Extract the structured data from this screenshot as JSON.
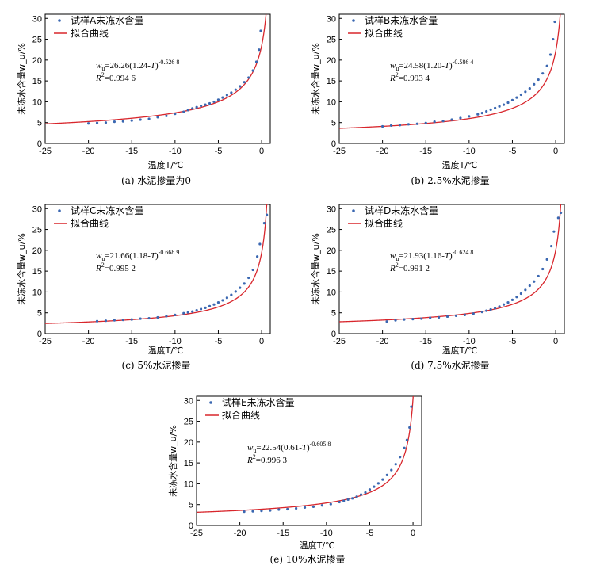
{
  "colors": {
    "scatter": "#3a67b1",
    "fit": "#d8262c",
    "axis": "#000000"
  },
  "chart_data": [
    {
      "type": "scatter",
      "caption": "(a) 水泥掺量为0",
      "xlabel": "温度T/℃",
      "ylabel": "未冻水含量w_u/%",
      "xlim": [
        -25,
        1
      ],
      "ylim": [
        0,
        31
      ],
      "xticks": [
        -25,
        -20,
        -15,
        -10,
        -5,
        0
      ],
      "yticks": [
        0,
        5,
        10,
        15,
        20,
        25,
        30
      ],
      "legend_position": "top-left",
      "series": [
        {
          "name": "试样A未冻水含量",
          "kind": "scatter",
          "x": [
            -20,
            -19,
            -18,
            -17,
            -16,
            -15,
            -14,
            -13,
            -12,
            -11,
            -10,
            -9,
            -8.5,
            -8,
            -7.5,
            -7,
            -6.5,
            -6,
            -5.5,
            -5,
            -4.5,
            -4,
            -3.5,
            -3,
            -2.5,
            -2,
            -1.5,
            -1,
            -0.6,
            -0.3,
            -0.1
          ],
          "y": [
            4.8,
            4.9,
            5.0,
            5.2,
            5.3,
            5.5,
            5.7,
            5.9,
            6.3,
            6.6,
            7.1,
            7.6,
            8.0,
            8.4,
            8.7,
            9.0,
            9.3,
            9.6,
            10.0,
            10.5,
            11.0,
            11.6,
            12.2,
            12.9,
            13.7,
            14.7,
            15.8,
            17.5,
            19.6,
            22.5,
            27.0
          ]
        },
        {
          "name": "拟合曲线",
          "kind": "fit",
          "a": 26.26,
          "b": 1.24,
          "c": -0.5268
        }
      ],
      "annotation": {
        "eq_main": "=26.26(1.24-",
        "eq_end": ")",
        "eq_exp": "-0.526 8",
        "r2_val": "=0.994 6"
      }
    },
    {
      "type": "scatter",
      "caption": "(b) 2.5%水泥掺量",
      "xlabel": "温度T/℃",
      "ylabel": "未冻水含量w_u/%",
      "xlim": [
        -25,
        1
      ],
      "ylim": [
        0,
        31
      ],
      "xticks": [
        -25,
        -20,
        -15,
        -10,
        -5,
        0
      ],
      "yticks": [
        0,
        5,
        10,
        15,
        20,
        25,
        30
      ],
      "legend_position": "top-left",
      "series": [
        {
          "name": "试样B未冻水含量",
          "kind": "scatter",
          "x": [
            -20,
            -19,
            -18,
            -17,
            -16,
            -15,
            -14,
            -13,
            -12,
            -11,
            -10,
            -9,
            -8.5,
            -8,
            -7.5,
            -7,
            -6.5,
            -6,
            -5.5,
            -5,
            -4.5,
            -4,
            -3.5,
            -3,
            -2.5,
            -2,
            -1.5,
            -1,
            -0.6,
            -0.3,
            -0.1
          ],
          "y": [
            4.1,
            4.3,
            4.4,
            4.6,
            4.7,
            4.9,
            5.2,
            5.4,
            5.7,
            6.1,
            6.5,
            7.0,
            7.3,
            7.7,
            8.1,
            8.5,
            8.9,
            9.3,
            9.8,
            10.4,
            11.0,
            11.7,
            12.4,
            13.2,
            14.2,
            15.3,
            16.8,
            18.6,
            21.3,
            25.0,
            29.2
          ]
        },
        {
          "name": "拟合曲线",
          "kind": "fit",
          "a": 24.58,
          "b": 1.2,
          "c": -0.5864
        }
      ],
      "annotation": {
        "eq_main": "=24.58(1.20-",
        "eq_end": ")",
        "eq_exp": "-0.586 4",
        "r2_val": "=0.993 4"
      }
    },
    {
      "type": "scatter",
      "caption": "(c) 5%水泥掺量",
      "xlabel": "温度T/℃",
      "ylabel": "未冻水含量w_u/%",
      "xlim": [
        -25,
        1
      ],
      "ylim": [
        0,
        31
      ],
      "xticks": [
        -25,
        -20,
        -15,
        -10,
        -5,
        0
      ],
      "yticks": [
        0,
        5,
        10,
        15,
        20,
        25,
        30
      ],
      "legend_position": "top-left",
      "series": [
        {
          "name": "试样C未冻水含量",
          "kind": "scatter",
          "x": [
            -19,
            -18,
            -17,
            -16,
            -15,
            -14,
            -13,
            -12,
            -11,
            -10,
            -9,
            -8.5,
            -8,
            -7.5,
            -7,
            -6.5,
            -6,
            -5.5,
            -5,
            -4.5,
            -4,
            -3.5,
            -3,
            -2.5,
            -2,
            -1.5,
            -1,
            -0.5,
            -0.2,
            0.3,
            0.6
          ],
          "y": [
            3.0,
            3.1,
            3.2,
            3.3,
            3.4,
            3.6,
            3.7,
            3.9,
            4.2,
            4.5,
            4.9,
            5.1,
            5.3,
            5.6,
            5.9,
            6.2,
            6.6,
            7.0,
            7.5,
            8.0,
            8.6,
            9.3,
            10.1,
            11.0,
            12.0,
            13.4,
            15.3,
            18.5,
            21.5,
            26.5,
            28.5
          ]
        },
        {
          "name": "拟合曲线",
          "kind": "fit",
          "a": 21.66,
          "b": 1.18,
          "c": -0.6689
        }
      ],
      "annotation": {
        "eq_main": "=21.66(1.18-",
        "eq_end": ")",
        "eq_exp": "-0.668 9",
        "r2_val": "=0.995 2"
      }
    },
    {
      "type": "scatter",
      "caption": "(d) 7.5%水泥掺量",
      "xlabel": "温度T/℃",
      "ylabel": "未冻水含量w_u/%",
      "xlim": [
        -25,
        1
      ],
      "ylim": [
        0,
        31
      ],
      "xticks": [
        -25,
        -20,
        -15,
        -10,
        -5,
        0
      ],
      "yticks": [
        0,
        5,
        10,
        15,
        20,
        25,
        30
      ],
      "legend_position": "top-left",
      "series": [
        {
          "name": "试样D未冻水含量",
          "kind": "scatter",
          "x": [
            -19.5,
            -18.5,
            -17.5,
            -16.5,
            -15.5,
            -14.5,
            -13.5,
            -12.5,
            -11.5,
            -10.5,
            -9.5,
            -8.5,
            -8,
            -7.5,
            -7,
            -6.5,
            -6,
            -5.5,
            -5,
            -4.5,
            -4,
            -3.5,
            -3,
            -2.5,
            -2,
            -1.5,
            -1,
            -0.5,
            -0.2,
            0.3,
            0.6
          ],
          "y": [
            2.9,
            3.2,
            3.4,
            3.5,
            3.6,
            3.8,
            3.9,
            4.1,
            4.3,
            4.5,
            4.8,
            5.2,
            5.5,
            5.8,
            6.1,
            6.5,
            7.0,
            7.5,
            8.1,
            8.8,
            9.6,
            10.5,
            11.5,
            12.5,
            13.8,
            15.5,
            17.8,
            21.0,
            24.5,
            27.8,
            29.0
          ]
        },
        {
          "name": "拟合曲线",
          "kind": "fit",
          "a": 21.93,
          "b": 1.16,
          "c": -0.6248
        }
      ],
      "annotation": {
        "eq_main": "=21.93(1.16-",
        "eq_end": ")",
        "eq_exp": "-0.624 8",
        "r2_val": "=0.991 2"
      }
    },
    {
      "type": "scatter",
      "caption": "(e) 10%水泥掺量",
      "xlabel": "温度T/℃",
      "ylabel": "未冻水含量w_u/%",
      "xlim": [
        -25,
        1
      ],
      "ylim": [
        0,
        31
      ],
      "xticks": [
        -25,
        -20,
        -15,
        -10,
        -5,
        0
      ],
      "yticks": [
        0,
        5,
        10,
        15,
        20,
        25,
        30
      ],
      "legend_position": "top-left",
      "series": [
        {
          "name": "试样E未冻水含量",
          "kind": "scatter",
          "x": [
            -19.5,
            -18.5,
            -17.5,
            -16.5,
            -15.5,
            -14.5,
            -13.5,
            -12.5,
            -11.5,
            -10.5,
            -9.5,
            -8.5,
            -8,
            -7.5,
            -7,
            -6.5,
            -6,
            -5.5,
            -5,
            -4.5,
            -4,
            -3.5,
            -3,
            -2.5,
            -2,
            -1.5,
            -1,
            -0.7,
            -0.4,
            -0.2
          ],
          "y": [
            3.3,
            3.4,
            3.5,
            3.6,
            3.8,
            3.9,
            4.1,
            4.3,
            4.5,
            4.8,
            5.1,
            5.6,
            5.9,
            6.2,
            6.5,
            6.9,
            7.4,
            7.9,
            8.6,
            9.3,
            10.1,
            11.0,
            12.1,
            13.3,
            14.7,
            16.4,
            18.6,
            20.5,
            23.5,
            28.5
          ]
        },
        {
          "name": "拟合曲线",
          "kind": "fit",
          "a": 22.54,
          "b": 0.61,
          "c": -0.6058
        }
      ],
      "annotation": {
        "eq_main": "=22.54(0.61-",
        "eq_end": ")",
        "eq_exp": "-0.605 8",
        "r2_val": "=0.996 3"
      }
    }
  ],
  "symbols": {
    "w": "w",
    "u": "u",
    "T": "T",
    "R": "R",
    "sq": "2"
  }
}
